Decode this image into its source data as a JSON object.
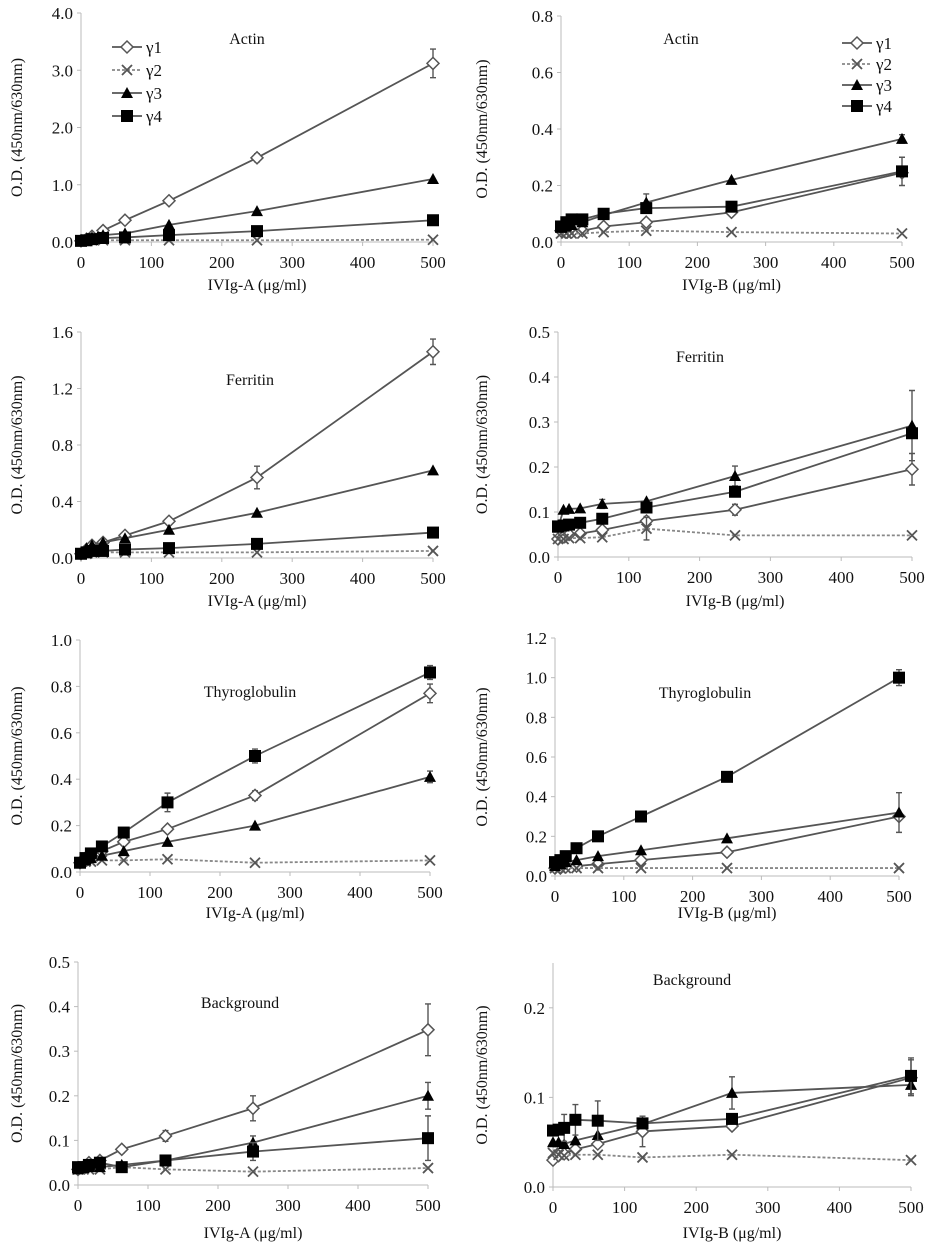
{
  "chart_data": [
    {
      "type": "line",
      "title": "Actin",
      "xlabel": "IVIg-A (μg/ml)",
      "ylabel": "O.D. (450nm/630nm)",
      "xlim": [
        0,
        500
      ],
      "ylim": [
        0,
        4.0
      ],
      "yticks": [
        0,
        1,
        2,
        3,
        4
      ],
      "ydecimals": 1,
      "xticks": [
        0,
        100,
        200,
        300,
        400,
        500
      ],
      "legend": "top-left",
      "x": [
        0,
        7.8,
        15.6,
        31.3,
        62.5,
        125,
        250,
        500
      ],
      "series": [
        {
          "name": "γ1",
          "values": [
            0.02,
            0.05,
            0.1,
            0.2,
            0.38,
            0.72,
            1.47,
            3.12
          ],
          "error": [
            0,
            0,
            0,
            0,
            0.02,
            0.03,
            0.07,
            0.25
          ]
        },
        {
          "name": "γ2",
          "values": [
            0.02,
            0.02,
            0.03,
            0.03,
            0.03,
            0.03,
            0.03,
            0.04
          ]
        },
        {
          "name": "γ3",
          "values": [
            0.02,
            0.05,
            0.08,
            0.12,
            0.15,
            0.3,
            0.54,
            1.1
          ]
        },
        {
          "name": "γ4",
          "values": [
            0.02,
            0.03,
            0.05,
            0.07,
            0.08,
            0.12,
            0.19,
            0.38
          ]
        }
      ]
    },
    {
      "type": "line",
      "title": "Actin",
      "xlabel": "IVIg-B (μg/ml)",
      "ylabel": "O.D. (450nm/630nm)",
      "xlim": [
        0,
        500
      ],
      "ylim": [
        0,
        0.8
      ],
      "yticks": [
        0,
        0.2,
        0.4,
        0.6,
        0.8
      ],
      "ydecimals": 1,
      "xticks": [
        0,
        100,
        200,
        300,
        400,
        500
      ],
      "legend": "top-right",
      "x": [
        0,
        7.8,
        15.6,
        31.3,
        62.5,
        125,
        250,
        500
      ],
      "series": [
        {
          "name": "γ1",
          "values": [
            0.04,
            0.035,
            0.035,
            0.04,
            0.055,
            0.07,
            0.105,
            0.245
          ]
        },
        {
          "name": "γ2",
          "values": [
            0.03,
            0.03,
            0.03,
            0.03,
            0.035,
            0.04,
            0.035,
            0.03
          ]
        },
        {
          "name": "γ3",
          "values": [
            0.05,
            0.055,
            0.06,
            0.07,
            0.095,
            0.14,
            0.22,
            0.365
          ],
          "error": [
            0,
            0,
            0,
            0,
            0,
            0.03,
            0,
            0.015
          ]
        },
        {
          "name": "γ4",
          "values": [
            0.055,
            0.07,
            0.08,
            0.08,
            0.1,
            0.12,
            0.125,
            0.25
          ],
          "error": [
            0,
            0,
            0,
            0,
            0,
            0,
            0,
            0.05
          ]
        }
      ]
    },
    {
      "type": "line",
      "title": "Ferritin",
      "xlabel": "IVIg-A (μg/ml)",
      "ylabel": "O.D. (450nm/630nm)",
      "xlim": [
        0,
        500
      ],
      "ylim": [
        0,
        1.6
      ],
      "yticks": [
        0,
        0.4,
        0.8,
        1.2,
        1.6
      ],
      "ydecimals": 1,
      "xticks": [
        0,
        100,
        200,
        300,
        400,
        500
      ],
      "x": [
        0,
        7.8,
        15.6,
        31.3,
        62.5,
        125,
        250,
        500
      ],
      "series": [
        {
          "name": "γ1",
          "values": [
            0.03,
            0.06,
            0.09,
            0.11,
            0.16,
            0.26,
            0.57,
            1.46
          ],
          "error": [
            0,
            0,
            0,
            0,
            0,
            0.02,
            0.08,
            0.09
          ]
        },
        {
          "name": "γ2",
          "values": [
            0.03,
            0.03,
            0.04,
            0.04,
            0.04,
            0.04,
            0.04,
            0.05
          ]
        },
        {
          "name": "γ3",
          "values": [
            0.03,
            0.07,
            0.09,
            0.11,
            0.14,
            0.2,
            0.32,
            0.62
          ]
        },
        {
          "name": "γ4",
          "values": [
            0.03,
            0.04,
            0.05,
            0.05,
            0.06,
            0.07,
            0.1,
            0.18
          ]
        }
      ]
    },
    {
      "type": "line",
      "title": "Ferritin",
      "xlabel": "IVIg-B (μg/ml)",
      "ylabel": "O.D. (450nm/630nm)",
      "xlim": [
        0,
        500
      ],
      "ylim": [
        0,
        0.5
      ],
      "yticks": [
        0,
        0.1,
        0.2,
        0.3,
        0.4,
        0.5
      ],
      "ydecimals": 1,
      "xticks": [
        0,
        100,
        200,
        300,
        400,
        500
      ],
      "x": [
        0,
        7.8,
        15.6,
        31.3,
        62.5,
        125,
        250,
        500
      ],
      "series": [
        {
          "name": "γ1",
          "values": [
            0.04,
            0.045,
            0.05,
            0.052,
            0.06,
            0.08,
            0.105,
            0.195
          ],
          "error": [
            0,
            0,
            0,
            0,
            0,
            0.01,
            0.012,
            0.035
          ]
        },
        {
          "name": "γ2",
          "values": [
            0.04,
            0.04,
            0.042,
            0.042,
            0.044,
            0.063,
            0.048,
            0.048
          ],
          "error": [
            0,
            0,
            0,
            0,
            0,
            0.025,
            0,
            0
          ]
        },
        {
          "name": "γ3",
          "values": [
            0.065,
            0.105,
            0.107,
            0.108,
            0.118,
            0.124,
            0.18,
            0.292
          ],
          "error": [
            0,
            0,
            0,
            0,
            0.01,
            0,
            0.022,
            0.078
          ]
        },
        {
          "name": "γ4",
          "values": [
            0.068,
            0.07,
            0.072,
            0.076,
            0.085,
            0.11,
            0.145,
            0.275
          ]
        }
      ]
    },
    {
      "type": "line",
      "title": "Thyroglobulin",
      "xlabel": "IVIg-A (μg/ml)",
      "ylabel": "O.D. (450nm/630nm)",
      "xlim": [
        0,
        500
      ],
      "ylim": [
        0,
        1.0
      ],
      "yticks": [
        0,
        0.2,
        0.4,
        0.6,
        0.8,
        1.0
      ],
      "ydecimals": 1,
      "xticks": [
        0,
        100,
        200,
        300,
        400,
        500
      ],
      "x": [
        0,
        7.8,
        15.6,
        31.3,
        62.5,
        125,
        250,
        500
      ],
      "series": [
        {
          "name": "γ1",
          "values": [
            0.04,
            0.06,
            0.07,
            0.09,
            0.13,
            0.185,
            0.33,
            0.77
          ],
          "error": [
            0,
            0,
            0,
            0,
            0,
            0,
            0.02,
            0.04
          ]
        },
        {
          "name": "γ2",
          "values": [
            0.04,
            0.045,
            0.045,
            0.05,
            0.05,
            0.055,
            0.04,
            0.05
          ]
        },
        {
          "name": "γ3",
          "values": [
            0.04,
            0.05,
            0.06,
            0.07,
            0.09,
            0.13,
            0.2,
            0.41
          ],
          "error": [
            0,
            0,
            0,
            0,
            0,
            0,
            0,
            0.025
          ]
        },
        {
          "name": "γ4",
          "values": [
            0.04,
            0.06,
            0.08,
            0.11,
            0.17,
            0.3,
            0.5,
            0.86
          ],
          "error": [
            0,
            0,
            0,
            0,
            0.02,
            0.04,
            0.03,
            0.03
          ]
        }
      ]
    },
    {
      "type": "line",
      "title": "Thyroglobulin",
      "xlabel": "IVIg-B (μg/ml)",
      "ylabel": "O.D. (450nm/630nm)",
      "xlim": [
        0,
        500
      ],
      "ylim": [
        0,
        1.2
      ],
      "yticks": [
        0,
        0.2,
        0.4,
        0.6,
        0.8,
        1.0,
        1.2
      ],
      "ydecimals": 1,
      "xticks": [
        0,
        100,
        200,
        300,
        400,
        500
      ],
      "x": [
        0,
        7.8,
        15.6,
        31.3,
        62.5,
        125,
        250,
        500
      ],
      "series": [
        {
          "name": "γ1",
          "values": [
            0.04,
            0.04,
            0.045,
            0.05,
            0.06,
            0.08,
            0.12,
            0.3
          ]
        },
        {
          "name": "γ2",
          "values": [
            0.04,
            0.04,
            0.04,
            0.04,
            0.04,
            0.04,
            0.04,
            0.04
          ]
        },
        {
          "name": "γ3",
          "values": [
            0.05,
            0.06,
            0.07,
            0.08,
            0.1,
            0.13,
            0.19,
            0.32
          ],
          "error": [
            0,
            0,
            0,
            0,
            0,
            0,
            0,
            0.1
          ]
        },
        {
          "name": "γ4",
          "values": [
            0.07,
            0.08,
            0.1,
            0.14,
            0.2,
            0.3,
            0.5,
            1.0
          ],
          "error": [
            0,
            0,
            0,
            0,
            0,
            0,
            0,
            0.04
          ]
        }
      ]
    },
    {
      "type": "line",
      "title": "Background",
      "xlabel": "IVIg-A (μg/ml)",
      "ylabel": "O.D. (450nm/630nm)",
      "xlim": [
        0,
        500
      ],
      "ylim": [
        0,
        0.5
      ],
      "yticks": [
        0,
        0.1,
        0.2,
        0.3,
        0.4,
        0.5
      ],
      "ydecimals": 1,
      "xticks": [
        0,
        100,
        200,
        300,
        400,
        500
      ],
      "x": [
        0,
        7.8,
        15.6,
        31.3,
        62.5,
        125,
        250,
        500
      ],
      "series": [
        {
          "name": "γ1",
          "values": [
            0.035,
            0.04,
            0.05,
            0.055,
            0.08,
            0.11,
            0.172,
            0.348
          ],
          "error": [
            0,
            0,
            0,
            0,
            0.008,
            0.012,
            0.028,
            0.058
          ]
        },
        {
          "name": "γ2",
          "values": [
            0.035,
            0.035,
            0.035,
            0.035,
            0.04,
            0.035,
            0.03,
            0.038
          ]
        },
        {
          "name": "γ3",
          "values": [
            0.035,
            0.04,
            0.04,
            0.04,
            0.045,
            0.055,
            0.095,
            0.2
          ],
          "error": [
            0,
            0,
            0,
            0,
            0,
            0,
            0.015,
            0.03
          ]
        },
        {
          "name": "γ4",
          "values": [
            0.04,
            0.04,
            0.045,
            0.05,
            0.04,
            0.055,
            0.075,
            0.105
          ],
          "error": [
            0,
            0,
            0,
            0,
            0,
            0,
            0.02,
            0.05
          ]
        }
      ]
    },
    {
      "type": "line",
      "title": "Background",
      "xlabel": "IVIg-B (μg/ml)",
      "ylabel": "O.D. (450nm/630nm)",
      "xlim": [
        0,
        500
      ],
      "ylim": [
        0,
        0.25
      ],
      "yticks": [
        0,
        0.1,
        0.2
      ],
      "ydecimals": 1,
      "xticks": [
        0,
        100,
        200,
        300,
        400,
        500
      ],
      "x": [
        0,
        7.8,
        15.6,
        31.3,
        62.5,
        125,
        250,
        500
      ],
      "series": [
        {
          "name": "γ1",
          "values": [
            0.03,
            0.035,
            0.037,
            0.042,
            0.048,
            0.062,
            0.068,
            0.122
          ],
          "error": [
            0,
            0,
            0,
            0,
            0,
            0.017,
            0.004,
            0.02
          ]
        },
        {
          "name": "γ2",
          "values": [
            0.038,
            0.036,
            0.035,
            0.036,
            0.036,
            0.033,
            0.036,
            0.03
          ]
        },
        {
          "name": "γ3",
          "values": [
            0.05,
            0.05,
            0.048,
            0.052,
            0.058,
            0.07,
            0.105,
            0.114
          ],
          "error": [
            0,
            0,
            0,
            0,
            0,
            0,
            0.018,
            0.012
          ]
        },
        {
          "name": "γ4",
          "values": [
            0.063,
            0.064,
            0.066,
            0.075,
            0.074,
            0.071,
            0.076,
            0.124
          ],
          "error": [
            0,
            0,
            0.015,
            0.017,
            0.022,
            0,
            0,
            0.02
          ]
        }
      ]
    }
  ]
}
